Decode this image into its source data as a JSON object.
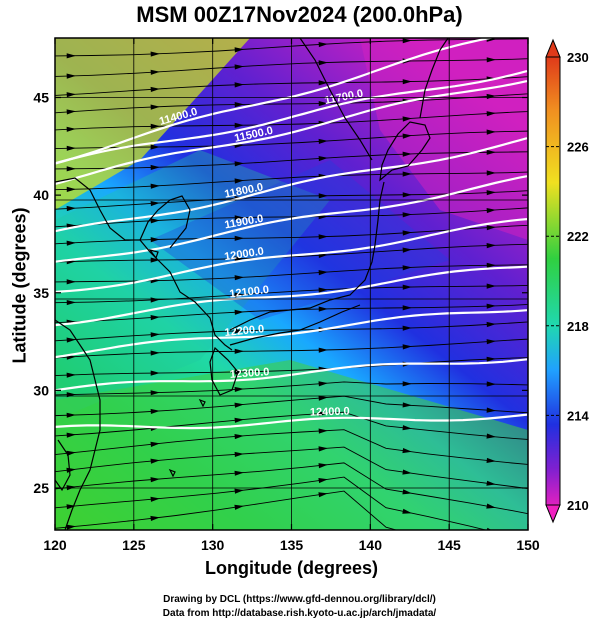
{
  "title": "MSM 00Z17Nov2024 (200.0hPa)",
  "xlabel": "Longitude (degrees)",
  "ylabel": "Latitude  (degrees)",
  "x_ticks": [
    "120",
    "125",
    "130",
    "135",
    "140",
    "145",
    "150"
  ],
  "y_ticks": [
    "25",
    "30",
    "35",
    "40",
    "45"
  ],
  "colorbar_ticks": [
    "230",
    "226",
    "222",
    "218",
    "214",
    "210"
  ],
  "contour_labels": [
    "11400.0",
    "11500.0",
    "11700.0",
    "11800.0",
    "11900.0",
    "12000.0",
    "12100.0",
    "12200.0",
    "12300.0",
    "12400.0"
  ],
  "credits": {
    "line1": "Drawing by DCL (https://www.gfd-dennou.org/library/dcl/)",
    "line2": "Data from http://database.rish.kyoto-u.ac.jp/arch/jmadata/"
  },
  "colors": {
    "high": "#e03a1a",
    "mid": "#22d27a",
    "low": "#d020c0",
    "contour": "#ffffff",
    "coast": "#000000"
  }
}
